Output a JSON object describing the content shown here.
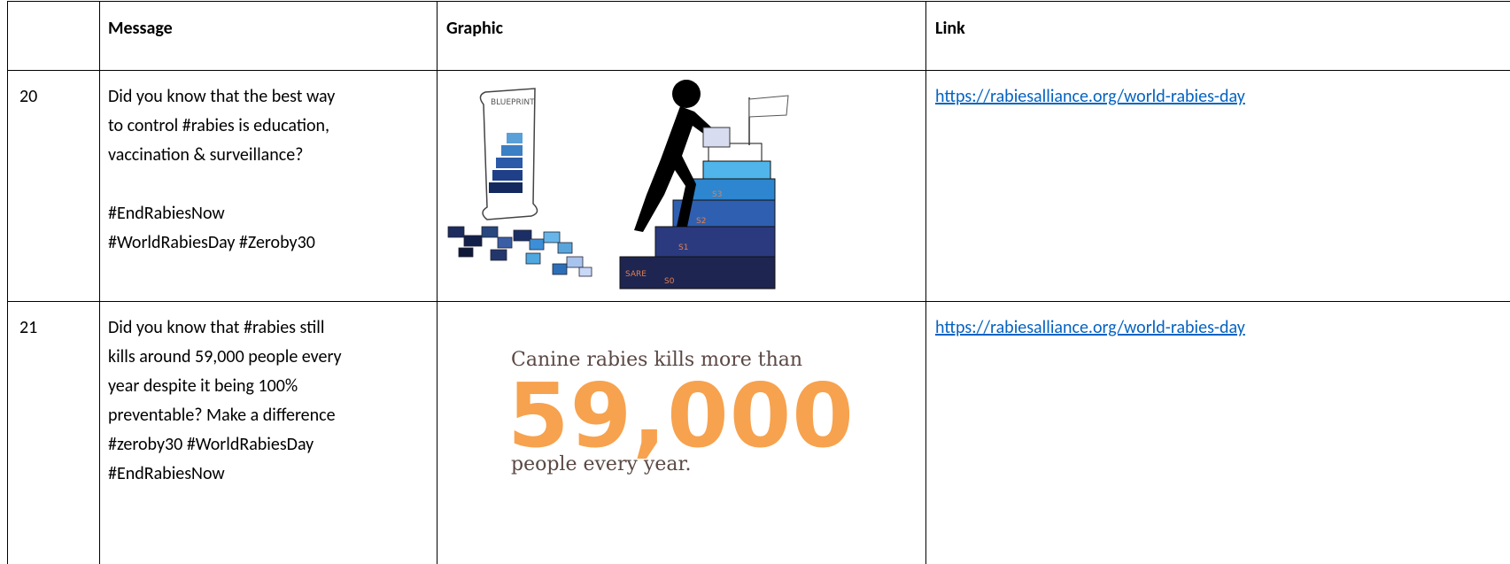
{
  "table": {
    "header": {
      "message": "Message",
      "graphic": "Graphic",
      "link": "Link"
    },
    "rows": [
      {
        "number": "20",
        "message": [
          "Did you know that the best way",
          "to control #rabies is education,",
          "vaccination & surveillance?",
          "#EndRabiesNow",
          "#WorldRabiesDay #Zeroby30"
        ],
        "graphic": {
          "blueprint": "BLUEPRINT",
          "steps": [
            "SARE",
            "S0",
            "S1",
            "S2",
            "S3"
          ]
        },
        "link": "https://rabiesalliance.org/world-rabies-day"
      },
      {
        "number": "21",
        "message": [
          "Did you know that #rabies still",
          "kills around 59,000 people every",
          "year despite it being 100%",
          "preventable? Make a difference",
          "#zeroby30 #WorldRabiesDay",
          "#EndRabiesNow"
        ],
        "graphic": {
          "line1": "Canine rabies kills more than",
          "number": "59,000",
          "line2": "people every year."
        },
        "link": "https://rabiesalliance.org/world-rabies-day"
      }
    ]
  }
}
